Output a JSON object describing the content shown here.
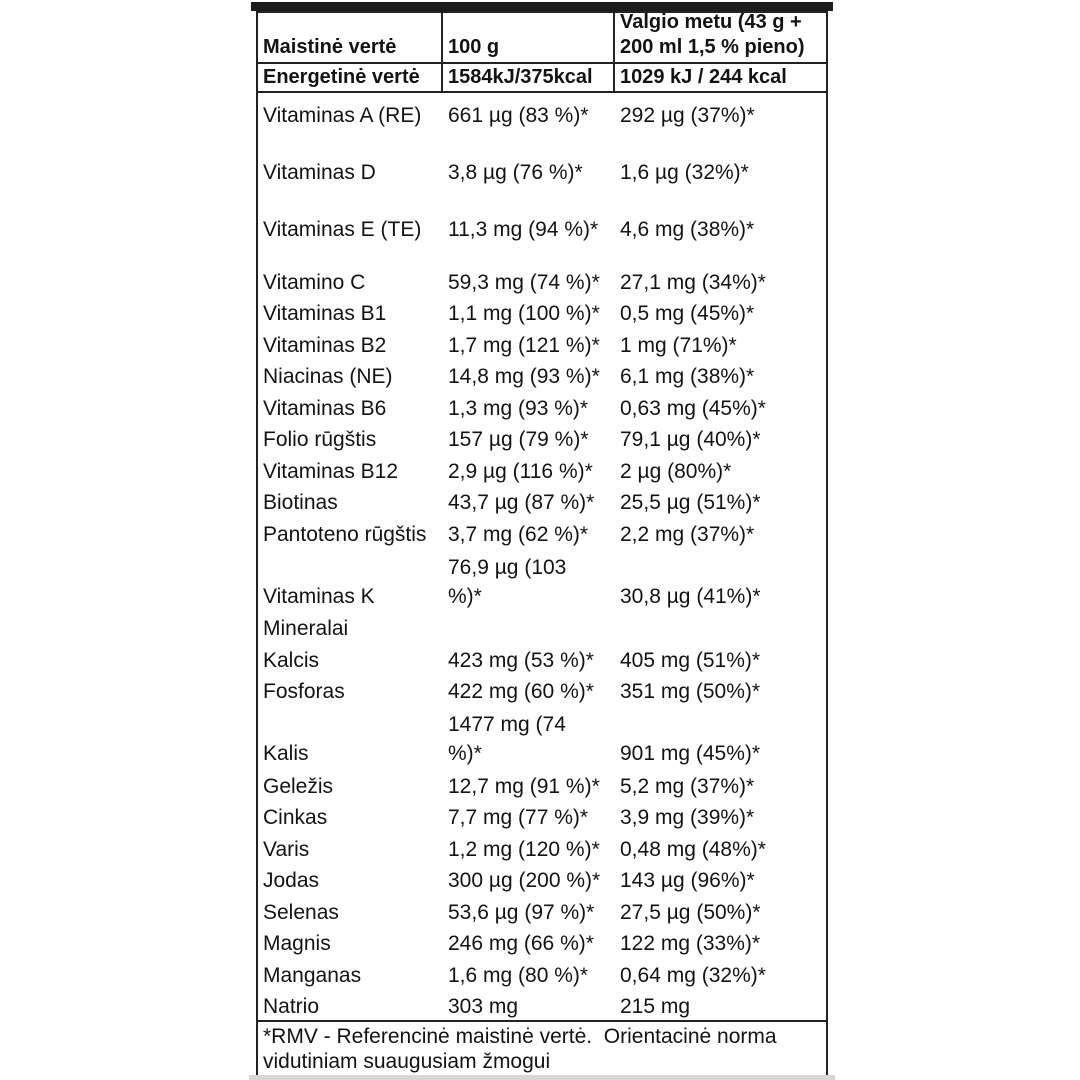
{
  "colors": {
    "top_bar": "#1b1b1b",
    "bottom_bar": "#d7d7d7",
    "table_border": "#222222",
    "text": "#131313",
    "background": "#ffffff"
  },
  "table": {
    "header": {
      "col_nutrient": "Maistinė vertė",
      "col_per_100g": "100 g",
      "col_per_serving": "Valgio metu (43 g + 200 ml 1,5 % pieno)"
    },
    "energy_row": {
      "label": "Energetinė vertė",
      "per100g": "1584kJ/375kcal",
      "serving": "1029 kJ / 244 kcal"
    },
    "rows": [
      {
        "label": "Vitaminas A (RE)",
        "per100g": "661 µg (83 %)*",
        "serving": "292 µg (37%)*"
      },
      {
        "label": "Vitaminas D",
        "per100g": "3,8 µg (76 %)*",
        "serving": "1,6 µg (32%)*"
      },
      {
        "label": "Vitaminas E (TE)",
        "per100g": "11,3 mg (94 %)*",
        "serving": "4,6 mg (38%)*"
      },
      {
        "label": "Vitamino C",
        "per100g": "59,3 mg (74 %)*",
        "serving": "27,1 mg (34%)*"
      },
      {
        "label": "Vitaminas B1",
        "per100g": "1,1 mg (100 %)*",
        "serving": "0,5 mg (45%)*"
      },
      {
        "label": "Vitaminas B2",
        "per100g": "1,7 mg (121 %)*",
        "serving": "1 mg (71%)*"
      },
      {
        "label": "Niacinas (NE)",
        "per100g": "14,8 mg (93 %)*",
        "serving": "6,1 mg (38%)*"
      },
      {
        "label": "Vitaminas B6",
        "per100g": "1,3 mg (93 %)*",
        "serving": "0,63 mg (45%)*"
      },
      {
        "label": "Folio rūgštis",
        "per100g": "157 µg (79 %)*",
        "serving": "79,1 µg (40%)*"
      },
      {
        "label": "Vitaminas B12",
        "per100g": "2,9 µg (116 %)*",
        "serving": "2 µg (80%)*"
      },
      {
        "label": "Biotinas",
        "per100g": "43,7 µg (87 %)*",
        "serving": "25,5 µg (51%)*"
      },
      {
        "label": "Pantoteno rūgštis",
        "per100g": "3,7 mg (62 %)*",
        "serving": "2,2 mg (37%)*"
      },
      {
        "label": "Vitaminas K",
        "per100g_line1": "76,9 µg (103",
        "per100g_line2": "%)*",
        "serving": "30,8 µg (41%)*"
      },
      {
        "label": "Mineralai",
        "per100g": "",
        "serving": ""
      },
      {
        "label": "Kalcis",
        "per100g": "423 mg (53 %)*",
        "serving": "405 mg (51%)*"
      },
      {
        "label": "Fosforas",
        "per100g": "422 mg (60 %)*",
        "serving": "351 mg (50%)*"
      },
      {
        "label": "Kalis",
        "per100g_line1": "1477 mg (74",
        "per100g_line2": "%)*",
        "serving": "901 mg (45%)*"
      },
      {
        "label": "Geležis",
        "per100g": "12,7 mg (91 %)*",
        "serving": "5,2 mg (37%)*"
      },
      {
        "label": "Cinkas",
        "per100g": "7,7 mg (77 %)*",
        "serving": "3,9 mg (39%)*"
      },
      {
        "label": "Varis",
        "per100g": "1,2 mg (120 %)*",
        "serving": "0,48 mg (48%)*"
      },
      {
        "label": "Jodas",
        "per100g": "300 µg (200 %)*",
        "serving": "143 µg (96%)*"
      },
      {
        "label": "Selenas",
        "per100g": "53,6 µg (97 %)*",
        "serving": "27,5 µg (50%)*"
      },
      {
        "label": "Magnis",
        "per100g": "246 mg (66 %)*",
        "serving": "122 mg (33%)*"
      },
      {
        "label": "Manganas",
        "per100g": "1,6 mg (80 %)*",
        "serving": "0,64 mg (32%)*"
      },
      {
        "label": "Natrio",
        "per100g": "303 mg",
        "serving": "215 mg"
      }
    ],
    "footnote_line1": "*RMV - Referencinė maistinė vertė.  Orientacinė norma",
    "footnote_line2": "vidutiniam suaugusiam žmogui"
  }
}
